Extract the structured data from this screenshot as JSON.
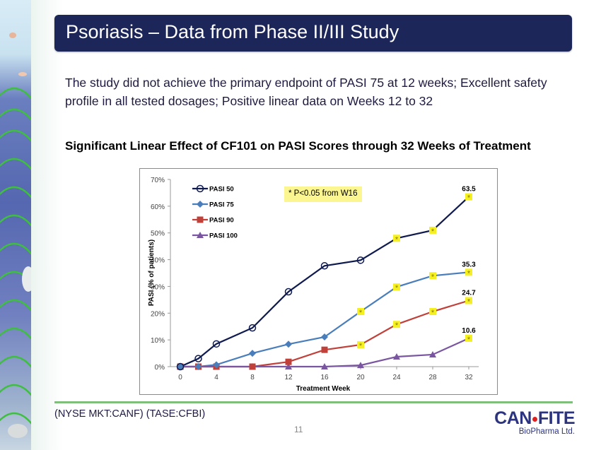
{
  "slide": {
    "title": "Psoriasis – Data from Phase II/III Study",
    "intro": "The study did not achieve the primary endpoint of PASI 75 at 12 weeks;  Excellent safety profile in all tested dosages; Positive linear data on Weeks 12 to 32",
    "subtitle": "Significant Linear Effect of CF101 on PASI Scores through 32 Weeks of Treatment",
    "footer": {
      "ticker": "(NYSE MKT:CANF)  (TASE:CFBI)",
      "page_number": "11",
      "logo_part1": "CAN",
      "logo_part2": "FITE",
      "logo_sub": "BioPharma Ltd."
    },
    "colors": {
      "title_bar": "#1d2659",
      "footer_line": "#7fbf7b",
      "annotation_bg": "#fbf68f"
    }
  },
  "chart_data": {
    "type": "line",
    "title": "",
    "xlabel": "Treatment Week",
    "ylabel": "PASI (% of patients)",
    "x": [
      0,
      2,
      4,
      8,
      12,
      16,
      20,
      24,
      28,
      32
    ],
    "xticks": [
      0,
      4,
      8,
      12,
      16,
      20,
      24,
      28,
      32
    ],
    "xlim": [
      0,
      32
    ],
    "ylim": [
      0,
      70
    ],
    "yticks": [
      "0%",
      "10%",
      "20%",
      "30%",
      "40%",
      "50%",
      "60%",
      "70%"
    ],
    "ytick_values": [
      0,
      10,
      20,
      30,
      40,
      50,
      60,
      70
    ],
    "grid": false,
    "legend_position": "top-left",
    "annotation": "* P<0.05 from W16",
    "significance_marker": "yellow asterisk on points with P<0.05",
    "series": [
      {
        "name": "PASI 50",
        "color": "#0f1a4e",
        "marker": "circle-open",
        "values": [
          0,
          3,
          8.5,
          14.5,
          28,
          37.7,
          39.8,
          48,
          51,
          63.5
        ],
        "significant": [
          false,
          false,
          false,
          false,
          false,
          false,
          false,
          true,
          true,
          true
        ],
        "end_label": "63.5"
      },
      {
        "name": "PASI 75",
        "color": "#4a7ebb",
        "marker": "diamond",
        "values": [
          0,
          0,
          0.7,
          5,
          8.4,
          11.1,
          20.6,
          29.8,
          34,
          35.3
        ],
        "significant": [
          false,
          false,
          false,
          false,
          false,
          false,
          true,
          true,
          true,
          true
        ],
        "end_label": "35.3"
      },
      {
        "name": "PASI 90",
        "color": "#c0403a",
        "marker": "square",
        "values": [
          0,
          0,
          0,
          0,
          1.8,
          6.3,
          8.2,
          15.8,
          20.6,
          24.7
        ],
        "significant": [
          false,
          false,
          false,
          false,
          false,
          false,
          true,
          true,
          true,
          true
        ],
        "end_label": "24.7"
      },
      {
        "name": "PASI 100",
        "color": "#7a55a0",
        "marker": "triangle",
        "values": [
          0,
          0,
          0,
          0,
          0,
          0,
          0.5,
          3.7,
          4.5,
          10.6
        ],
        "significant": [
          false,
          false,
          false,
          false,
          false,
          false,
          false,
          false,
          false,
          true
        ],
        "end_label": "10.6"
      }
    ]
  }
}
